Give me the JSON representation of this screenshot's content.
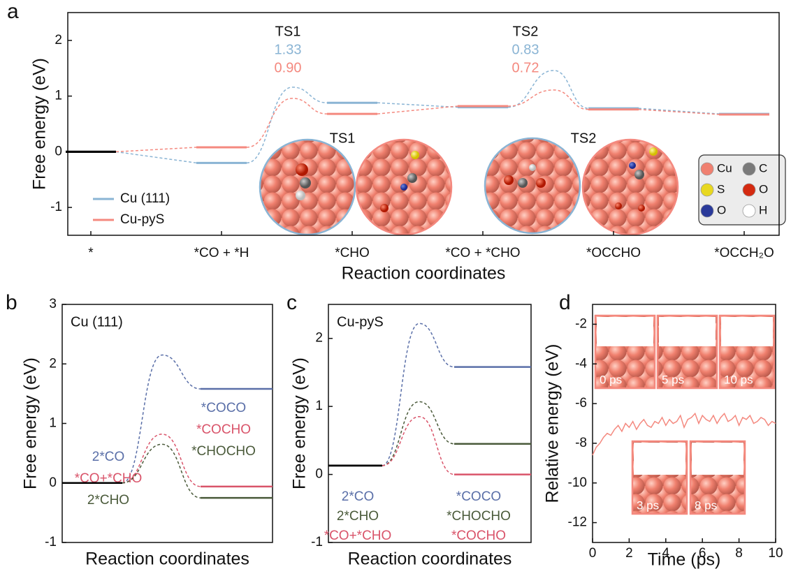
{
  "chart_data": [
    {
      "type": "energy_diagram",
      "panel_label": "a",
      "ylabel": "Free energy (eV)",
      "xlabel": "Reaction coordinates",
      "categories": [
        "*",
        "*CO + *H",
        "*CHO",
        "*CO + *CHO",
        "*OCCHO",
        "*OCCH₂O"
      ],
      "ylim": [
        -1.5,
        2.5
      ],
      "yticks": [
        -1,
        0,
        1,
        2
      ],
      "legend": "lower left",
      "initial_color": "#000000",
      "ts_labels": [
        "TS1",
        "TS2"
      ],
      "series": [
        {
          "name": "Cu (111)",
          "color": "#8ab4d4",
          "values": [
            0,
            -0.2,
            0.88,
            0.8,
            0.78,
            0.68
          ],
          "ts_values": [
            null,
            1.16,
            null,
            1.46,
            null
          ],
          "barriers": [
            1.33,
            0.83
          ]
        },
        {
          "name": "Cu-pyS",
          "color": "#f4897f",
          "values": [
            0,
            0.08,
            0.68,
            0.82,
            0.76,
            0.67
          ],
          "ts_values": [
            null,
            0.96,
            null,
            1.11,
            null
          ],
          "barriers": [
            0.9,
            0.72
          ],
          "barrier_labels": [
            "0.90",
            "0.72"
          ]
        }
      ],
      "elements": [
        {
          "name": "Cu",
          "color": "#f08070"
        },
        {
          "name": "C",
          "color": "#7a7a7a"
        },
        {
          "name": "S",
          "color": "#e8d820"
        },
        {
          "name": "O",
          "color": "#d42a10"
        },
        {
          "name": "O",
          "color": "#2a3a9a"
        },
        {
          "name": "H",
          "color": "#ffffff"
        }
      ]
    },
    {
      "type": "energy_profile",
      "panel_label": "b",
      "title": "Cu (111)",
      "ylabel": "Free energy (eV)",
      "xlabel": "Reaction coordinates",
      "ylim": [
        -1,
        3
      ],
      "yticks": [
        -1,
        0,
        1,
        2,
        3
      ],
      "initial_color": "#000000",
      "series": [
        {
          "name": "*COCO",
          "initial_name": "2*CO",
          "color": "#5a6fa8",
          "values": [
            0,
            2.15,
            1.58
          ]
        },
        {
          "name": "*COCHO",
          "initial_name": "*CO+*CHO",
          "color": "#d9546a",
          "values": [
            0,
            0.82,
            -0.06
          ]
        },
        {
          "name": "*CHOCHO",
          "initial_name": "2*CHO",
          "color": "#4a5a3a",
          "values": [
            0,
            0.65,
            -0.25
          ]
        }
      ]
    },
    {
      "type": "energy_profile",
      "panel_label": "c",
      "title": "Cu-pyS",
      "ylabel": "Free energy (eV)",
      "xlabel": "Reaction coordinates",
      "ylim": [
        -1,
        2.5
      ],
      "yticks": [
        -1,
        0,
        1,
        2
      ],
      "initial_color": "#000000",
      "series": [
        {
          "name": "*COCO",
          "initial_name": "2*CO",
          "color": "#5a6fa8",
          "values": [
            0.13,
            2.22,
            1.58
          ]
        },
        {
          "name": "*CHOCHO",
          "initial_name": "2*CHO",
          "color": "#4a5a3a",
          "values": [
            0.13,
            1.07,
            0.45
          ]
        },
        {
          "name": "*COCHO",
          "initial_name": "*CO+*CHO",
          "color": "#d9546a",
          "values": [
            0.13,
            0.85,
            0
          ]
        }
      ]
    },
    {
      "type": "line",
      "panel_label": "d",
      "ylabel": "Relative energy (eV)",
      "xlabel": "Time (ps)",
      "xlim": [
        0,
        10
      ],
      "xticks": [
        0,
        2,
        4,
        6,
        8,
        10
      ],
      "ylim": [
        -13,
        -1
      ],
      "yticks": [
        -2,
        -4,
        -6,
        -8,
        -10,
        -12
      ],
      "color": "#f4897f",
      "snapshots": [
        "0 ps",
        "5 ps",
        "10 ps",
        "3 ps",
        "8 ps"
      ],
      "x": [
        0,
        0.2,
        0.4,
        0.6,
        0.8,
        1,
        1.2,
        1.4,
        1.6,
        1.8,
        2,
        2.2,
        2.4,
        2.6,
        2.8,
        3,
        3.2,
        3.4,
        3.6,
        3.8,
        4,
        4.2,
        4.4,
        4.6,
        4.8,
        5,
        5.2,
        5.4,
        5.6,
        5.8,
        6,
        6.2,
        6.4,
        6.6,
        6.8,
        7,
        7.2,
        7.4,
        7.6,
        7.8,
        8,
        8.2,
        8.4,
        8.6,
        8.8,
        9,
        9.2,
        9.4,
        9.6,
        9.8,
        10
      ],
      "values": [
        -8.6,
        -8.2,
        -8.0,
        -7.7,
        -7.5,
        -7.6,
        -7.3,
        -7.1,
        -7.4,
        -7.0,
        -7.2,
        -6.9,
        -7.3,
        -7.0,
        -6.8,
        -7.1,
        -7.2,
        -6.9,
        -7.0,
        -6.7,
        -7.1,
        -6.8,
        -7.0,
        -6.9,
        -6.6,
        -7.2,
        -6.8,
        -6.7,
        -6.5,
        -7.0,
        -6.6,
        -6.8,
        -6.9,
        -6.6,
        -7.0,
        -6.7,
        -6.5,
        -6.9,
        -6.8,
        -6.6,
        -7.1,
        -6.7,
        -6.8,
        -6.6,
        -7.0,
        -6.9,
        -6.7,
        -6.8,
        -7.1,
        -6.9,
        -7.0
      ]
    }
  ]
}
